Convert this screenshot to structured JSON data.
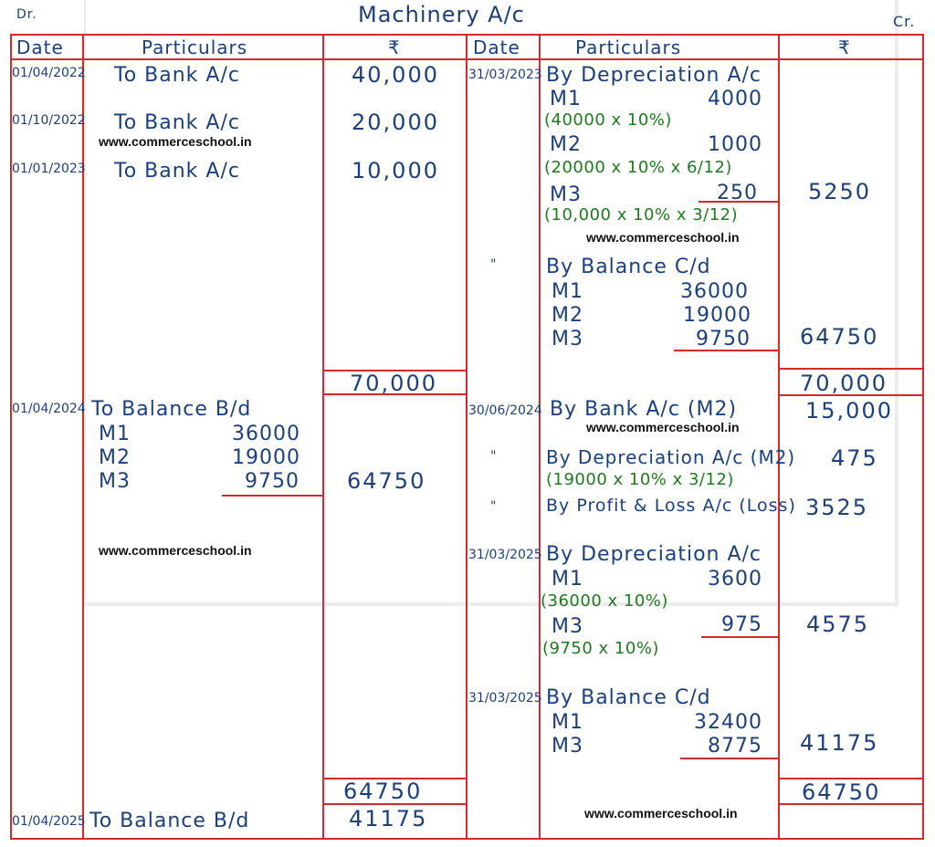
{
  "title": "Machinery A/c",
  "dr": "Dr.",
  "cr": "Cr.",
  "watermark": "www.commerceschool.in",
  "headers": {
    "date": "Date",
    "particulars": "Particulars",
    "amount": "₹"
  },
  "debit": {
    "entries": [
      {
        "date": "01/04/2022",
        "particulars": "To Bank A/c",
        "amount": "40,000"
      },
      {
        "date": "01/10/2022",
        "particulars": "To Bank A/c",
        "amount": "20,000"
      },
      {
        "date": "01/01/2023",
        "particulars": "To Bank A/c",
        "amount": "10,000"
      }
    ],
    "total_1": "70,000",
    "bal_bd": {
      "date": "01/04/2024",
      "particulars": "To Balance B/d",
      "items": [
        {
          "label": "M1",
          "value": "36000"
        },
        {
          "label": "M2",
          "value": "19000"
        },
        {
          "label": "M3",
          "value": "9750"
        }
      ],
      "amount": "64750"
    },
    "total_2": "64750",
    "bal_bd_2": {
      "date": "01/04/2025",
      "particulars": "To Balance B/d",
      "amount": "41175"
    }
  },
  "credit": {
    "dep_1": {
      "date": "31/03/2023",
      "particulars": "By Depreciation A/c",
      "items": [
        {
          "label": "M1",
          "value": "4000",
          "note": "(40000 x 10%)"
        },
        {
          "label": "M2",
          "value": "1000",
          "note": "(20000 x 10% x 6/12)"
        },
        {
          "label": "M3",
          "value": "250",
          "note": "(10,000 x 10% x 3/12)"
        }
      ],
      "amount": "5250"
    },
    "bal_cd_1": {
      "date": "\"",
      "particulars": "By Balance C/d",
      "items": [
        {
          "label": "M1",
          "value": "36000"
        },
        {
          "label": "M2",
          "value": "19000"
        },
        {
          "label": "M3",
          "value": "9750"
        }
      ],
      "amount": "64750"
    },
    "total_1": "70,000",
    "bank": {
      "date": "30/06/2024",
      "particulars": "By Bank A/c (M2)",
      "amount": "15,000"
    },
    "dep_m2": {
      "date": "\"",
      "particulars": "By Depreciation A/c (M2)",
      "note": "(19000 x 10% x 3/12)",
      "amount": "475"
    },
    "pl": {
      "date": "\"",
      "particulars": "By Profit & Loss A/c (Loss)",
      "amount": "3525"
    },
    "dep_2": {
      "date": "31/03/2025",
      "particulars": "By Depreciation A/c",
      "items": [
        {
          "label": "M1",
          "value": "3600",
          "note": "(36000 x 10%)"
        },
        {
          "label": "M3",
          "value": "975",
          "note": "(9750 x 10%)"
        }
      ],
      "amount": "4575"
    },
    "bal_cd_2": {
      "date": "31/03/2025",
      "particulars": "By Balance C/d",
      "items": [
        {
          "label": "M1",
          "value": "32400"
        },
        {
          "label": "M3",
          "value": "8775"
        }
      ],
      "amount": "41175"
    },
    "total_2": "64750"
  }
}
